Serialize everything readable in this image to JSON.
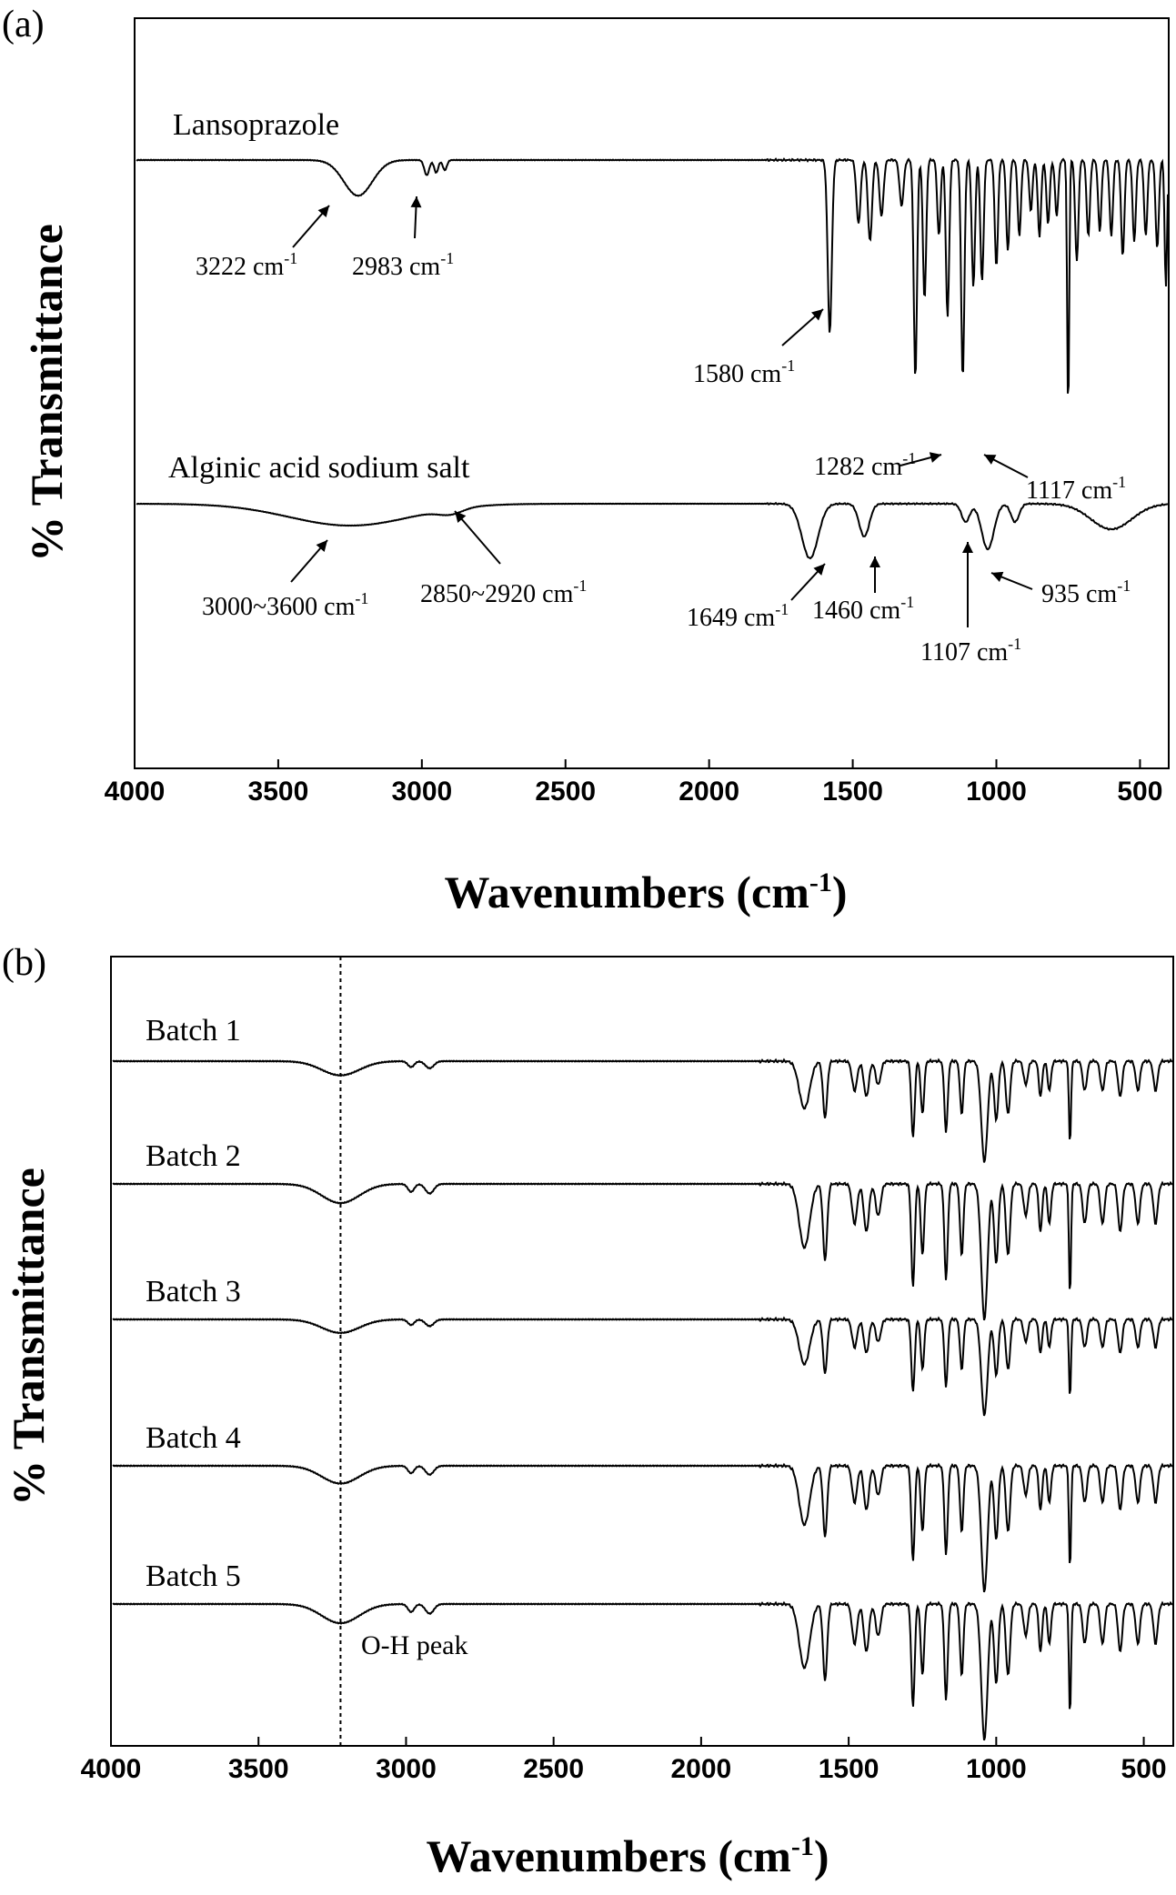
{
  "panels": [
    {
      "label": "(a)"
    },
    {
      "label": "(b)"
    }
  ],
  "chart_data": [
    {
      "type": "line",
      "panel": "(a)",
      "title": "",
      "xlabel": "Wavenumbers (cm",
      "xlabel_sup": "-1",
      "xlabel_close": ")",
      "ylabel": "% Transmittance",
      "xlim": [
        4000,
        400
      ],
      "x_reversed": true,
      "x_ticks": [
        4000,
        3500,
        3000,
        2500,
        2000,
        1500,
        1000,
        500
      ],
      "y_ticks": [],
      "grid": false,
      "legend": "none",
      "series": [
        {
          "name": "Lansoprazole",
          "baseline": 0.74,
          "dips": [
            [
              3222,
              0.14,
              70
            ],
            [
              2983,
              0.06,
              12
            ],
            [
              2950,
              0.05,
              10
            ],
            [
              2920,
              0.04,
              10
            ],
            [
              1580,
              0.68,
              10
            ],
            [
              1480,
              0.25,
              10
            ],
            [
              1440,
              0.32,
              10
            ],
            [
              1400,
              0.22,
              10
            ],
            [
              1330,
              0.18,
              10
            ],
            [
              1282,
              0.86,
              8
            ],
            [
              1250,
              0.55,
              8
            ],
            [
              1200,
              0.3,
              8
            ],
            [
              1170,
              0.62,
              8
            ],
            [
              1117,
              0.86,
              8
            ],
            [
              1080,
              0.5,
              8
            ],
            [
              1050,
              0.48,
              8
            ],
            [
              1000,
              0.42,
              8
            ],
            [
              960,
              0.36,
              8
            ],
            [
              920,
              0.3,
              8
            ],
            [
              880,
              0.2,
              8
            ],
            [
              850,
              0.3,
              8
            ],
            [
              820,
              0.25,
              8
            ],
            [
              790,
              0.22,
              8
            ],
            [
              750,
              1.0,
              5
            ],
            [
              720,
              0.4,
              8
            ],
            [
              680,
              0.3,
              8
            ],
            [
              640,
              0.28,
              8
            ],
            [
              600,
              0.3,
              8
            ],
            [
              560,
              0.38,
              8
            ],
            [
              520,
              0.32,
              8
            ],
            [
              480,
              0.3,
              8
            ],
            [
              440,
              0.35,
              8
            ],
            [
              410,
              0.5,
              6
            ]
          ],
          "annotations": [
            {
              "text": "3222 cm",
              "x": 3222
            },
            {
              "text": "2983 cm",
              "x": 2983
            },
            {
              "text": "1580 cm",
              "x": 1580
            },
            {
              "text": "1282 cm",
              "x": 1282
            },
            {
              "text": "1117 cm",
              "x": 1117
            }
          ]
        },
        {
          "name": "Alginic acid sodium salt",
          "baseline": 0.72,
          "dips": [
            [
              3250,
              0.12,
              300
            ],
            [
              2900,
              0.03,
              60
            ],
            [
              1649,
              0.3,
              40
            ],
            [
              1460,
              0.18,
              25
            ],
            [
              1107,
              0.1,
              20
            ],
            [
              1030,
              0.25,
              30
            ],
            [
              935,
              0.1,
              20
            ],
            [
              600,
              0.14,
              100
            ]
          ],
          "annotations": [
            {
              "text": "3000~3600 cm",
              "x": 3300
            },
            {
              "text": "2850~2920 cm",
              "x": 2900
            },
            {
              "text": "1649 cm",
              "x": 1649
            },
            {
              "text": "1460 cm",
              "x": 1460
            },
            {
              "text": "1107 cm",
              "x": 1107
            },
            {
              "text": "935 cm",
              "x": 935
            }
          ]
        }
      ]
    },
    {
      "type": "line",
      "panel": "(b)",
      "title": "",
      "xlabel": "Wavenumbers (cm",
      "xlabel_sup": "-1",
      "xlabel_close": ")",
      "ylabel": "% Transmittance",
      "xlim": [
        4000,
        400
      ],
      "x_reversed": true,
      "x_ticks": [
        4000,
        3500,
        3000,
        2500,
        2000,
        1500,
        1000,
        500
      ],
      "y_ticks": [],
      "grid": false,
      "legend": "none",
      "reference_line": {
        "x": 3222,
        "label": "O-H peak"
      },
      "series": [
        {
          "name": "Batch 1"
        },
        {
          "name": "Batch 2"
        },
        {
          "name": "Batch 3"
        },
        {
          "name": "Batch 4"
        },
        {
          "name": "Batch 5"
        }
      ],
      "batch_dips": [
        [
          3222,
          0.12,
          90
        ],
        [
          2983,
          0.05,
          15
        ],
        [
          2920,
          0.06,
          20
        ],
        [
          1650,
          0.4,
          25
        ],
        [
          1580,
          0.48,
          10
        ],
        [
          1480,
          0.25,
          12
        ],
        [
          1440,
          0.3,
          12
        ],
        [
          1400,
          0.2,
          12
        ],
        [
          1282,
          0.65,
          8
        ],
        [
          1250,
          0.45,
          8
        ],
        [
          1170,
          0.6,
          8
        ],
        [
          1117,
          0.45,
          8
        ],
        [
          1040,
          0.85,
          15
        ],
        [
          1000,
          0.5,
          10
        ],
        [
          960,
          0.45,
          10
        ],
        [
          900,
          0.2,
          10
        ],
        [
          850,
          0.3,
          8
        ],
        [
          820,
          0.25,
          8
        ],
        [
          750,
          0.7,
          5
        ],
        [
          700,
          0.25,
          10
        ],
        [
          640,
          0.25,
          10
        ],
        [
          580,
          0.3,
          10
        ],
        [
          520,
          0.25,
          10
        ],
        [
          460,
          0.25,
          10
        ]
      ],
      "batch_depth_scale": [
        1.0,
        1.35,
        0.95,
        1.25,
        1.35
      ]
    }
  ]
}
